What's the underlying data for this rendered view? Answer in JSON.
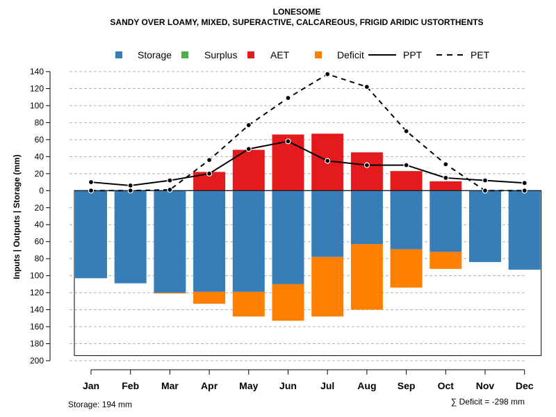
{
  "chart_data": {
    "type": "bar",
    "title": "LONESOME",
    "subtitle": "SANDY OVER LOAMY, MIXED, SUPERACTIVE, CALCAREOUS, FRIGID ARIDIC USTORTHENTS",
    "ylabel": "Inputs | Outputs | Storage     (mm)",
    "categories": [
      "Jan",
      "Feb",
      "Mar",
      "Apr",
      "May",
      "Jun",
      "Jul",
      "Aug",
      "Sep",
      "Oct",
      "Nov",
      "Dec"
    ],
    "ylim": [
      -200,
      140
    ],
    "y_ticks": [
      140,
      120,
      100,
      80,
      60,
      40,
      20,
      0,
      -20,
      -40,
      -60,
      -80,
      -100,
      -120,
      -140,
      -160,
      -180,
      -200
    ],
    "y_tick_labels": [
      "140",
      "120",
      "100",
      "80",
      "60",
      "40",
      "20",
      "0",
      "20",
      "40",
      "60",
      "80",
      "100",
      "120",
      "140",
      "160",
      "180",
      "200"
    ],
    "legend": [
      {
        "name": "Storage",
        "color": "#377EB8",
        "kind": "box"
      },
      {
        "name": "Surplus",
        "color": "#4DAF4A",
        "kind": "box"
      },
      {
        "name": "AET",
        "color": "#E41A1C",
        "kind": "box"
      },
      {
        "name": "Deficit",
        "color": "#FF7F00",
        "kind": "box"
      },
      {
        "name": "PPT",
        "color": "#000000",
        "kind": "solid"
      },
      {
        "name": "PET",
        "color": "#000000",
        "kind": "dashed"
      }
    ],
    "series": [
      {
        "name": "Storage",
        "values": [
          103,
          109,
          120,
          119,
          119,
          110,
          78,
          63,
          69,
          72,
          84,
          93
        ]
      },
      {
        "name": "Surplus",
        "values": [
          0,
          0,
          0,
          0,
          0,
          0,
          0,
          0,
          0,
          0,
          0,
          0
        ]
      },
      {
        "name": "AET",
        "values": [
          0,
          0,
          0,
          22,
          48,
          66,
          67,
          45,
          23,
          11,
          0,
          0
        ]
      },
      {
        "name": "Deficit",
        "values": [
          0,
          0,
          1,
          14,
          29,
          43,
          70,
          77,
          45,
          20,
          0,
          0
        ]
      },
      {
        "name": "PPT",
        "values": [
          10,
          6,
          12,
          20,
          49,
          58,
          35,
          30,
          30,
          15,
          12,
          9
        ]
      },
      {
        "name": "PET",
        "values": [
          0,
          0,
          1,
          36,
          77,
          109,
          137,
          122,
          70,
          31,
          0,
          0
        ]
      }
    ],
    "storage_capacity": 194,
    "storage_note": "Storage: 194 mm",
    "deficit_note": "∑ Deficit = -298 mm"
  }
}
